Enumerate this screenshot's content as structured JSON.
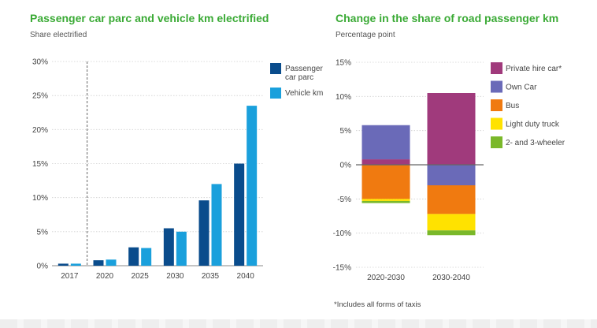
{
  "left_chart": {
    "title": "Passenger car parc and vehicle km electrified",
    "subtitle": "Share electrified"
  },
  "right_chart": {
    "title": "Change in the share of road passenger km",
    "subtitle": "Percentage point"
  },
  "footnote": "*Includes all forms of taxis",
  "chart_data": [
    {
      "type": "bar",
      "title": "Passenger car parc and vehicle km electrified",
      "subtitle": "Share electrified",
      "categories": [
        "2017",
        "2020",
        "2025",
        "2030",
        "2035",
        "2040"
      ],
      "series": [
        {
          "name": "Passenger car parc",
          "color": "#0a4c8c",
          "values": [
            0.3,
            0.8,
            2.7,
            5.5,
            9.6,
            15.0
          ]
        },
        {
          "name": "Vehicle km",
          "color": "#1aa0dc",
          "values": [
            0.3,
            0.9,
            2.6,
            5.0,
            12.0,
            23.5
          ]
        }
      ],
      "y_ticks": [
        "0%",
        "5%",
        "10%",
        "15%",
        "20%",
        "25%",
        "30%"
      ],
      "ylim": [
        0,
        30
      ],
      "legend": "top-right",
      "annotation": "dashed vertical line after 2017"
    },
    {
      "type": "bar",
      "stacked": true,
      "title": "Change in the share of road passenger km",
      "subtitle": "Percentage point",
      "categories": [
        "2020-2030",
        "2030-2040"
      ],
      "series": [
        {
          "name": "Private hire car*",
          "color": "#a03a7c",
          "values": [
            0.8,
            10.5
          ]
        },
        {
          "name": "Own Car",
          "color": "#6a6ab8",
          "values": [
            5.0,
            -3.0
          ]
        },
        {
          "name": "Bus",
          "color": "#f07a10",
          "values": [
            -5.0,
            -4.2
          ]
        },
        {
          "name": "Light duty truck",
          "color": "#ffe200",
          "values": [
            -0.3,
            -2.4
          ]
        },
        {
          "name": "2- and 3-wheeler",
          "color": "#7ab82a",
          "values": [
            -0.3,
            -0.7
          ]
        }
      ],
      "y_ticks": [
        "-15%",
        "-10%",
        "-5%",
        "0%",
        "5%",
        "10%",
        "15%"
      ],
      "ylim": [
        -15,
        15
      ],
      "legend": "right"
    }
  ]
}
